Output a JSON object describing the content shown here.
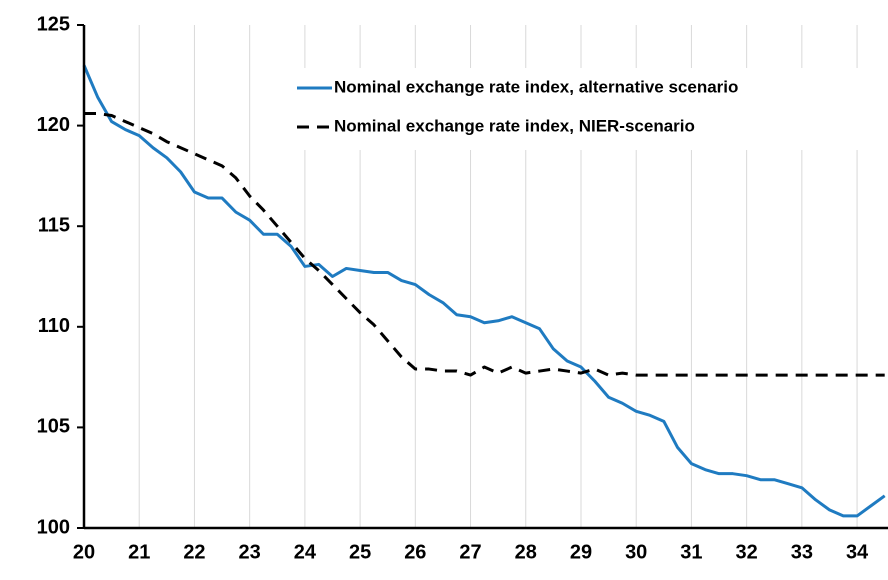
{
  "chart_data": {
    "type": "line",
    "x": [
      20,
      20.25,
      20.5,
      20.75,
      21,
      21.25,
      21.5,
      21.75,
      22,
      22.25,
      22.5,
      22.75,
      23,
      23.25,
      23.5,
      23.75,
      24,
      24.25,
      24.5,
      24.75,
      25,
      25.25,
      25.5,
      25.75,
      26,
      26.25,
      26.5,
      26.75,
      27,
      27.25,
      27.5,
      27.75,
      28,
      28.25,
      28.5,
      28.75,
      29,
      29.25,
      29.5,
      29.75,
      30,
      30.25,
      30.5,
      30.75,
      31,
      31.25,
      31.5,
      31.75,
      32,
      32.25,
      32.5,
      32.75,
      33,
      33.25,
      33.5,
      33.75,
      34,
      34.25,
      34.5
    ],
    "series": [
      {
        "name": "Nominal exchange rate index, alternative scenario",
        "color": "#1f7bc1",
        "dash": false,
        "values": [
          123.0,
          121.4,
          120.2,
          119.8,
          119.5,
          118.9,
          118.4,
          117.7,
          116.7,
          116.4,
          116.4,
          115.7,
          115.3,
          114.6,
          114.6,
          114.0,
          113.0,
          113.1,
          112.5,
          112.9,
          112.8,
          112.7,
          112.7,
          112.3,
          112.1,
          111.6,
          111.2,
          110.6,
          110.5,
          110.2,
          110.3,
          110.5,
          110.2,
          109.9,
          108.9,
          108.3,
          108.0,
          107.3,
          106.5,
          106.2,
          105.8,
          105.6,
          105.3,
          104.0,
          103.2,
          102.9,
          102.7,
          102.7,
          102.6,
          102.4,
          102.4,
          102.2,
          102.0,
          101.4,
          100.9,
          100.6,
          100.6,
          101.1,
          101.6
        ]
      },
      {
        "name": "Nominal exchange rate index, NIER-scenario",
        "color": "#000000",
        "dash": true,
        "values": [
          120.6,
          120.6,
          120.5,
          120.2,
          119.9,
          119.6,
          119.2,
          118.9,
          118.6,
          118.3,
          118.0,
          117.4,
          116.5,
          115.8,
          115.0,
          114.2,
          113.4,
          112.8,
          112.1,
          111.4,
          110.7,
          110.1,
          109.3,
          108.5,
          107.9,
          107.9,
          107.8,
          107.8,
          107.6,
          108.0,
          107.7,
          108.0,
          107.7,
          107.8,
          107.9,
          107.8,
          107.7,
          107.9,
          107.6,
          107.7,
          107.6,
          107.6,
          107.6,
          107.6,
          107.6,
          107.6,
          107.6,
          107.6,
          107.6,
          107.6,
          107.6,
          107.6,
          107.6,
          107.6,
          107.6,
          107.6,
          107.6,
          107.6,
          107.6
        ]
      }
    ],
    "xlim": [
      20,
      34.56
    ],
    "xticks": [
      20,
      21,
      22,
      23,
      24,
      25,
      26,
      27,
      28,
      29,
      30,
      31,
      32,
      33,
      34
    ],
    "ylim": [
      100,
      125
    ],
    "yticks": [
      100,
      105,
      110,
      115,
      120,
      125
    ],
    "grid": "x"
  }
}
